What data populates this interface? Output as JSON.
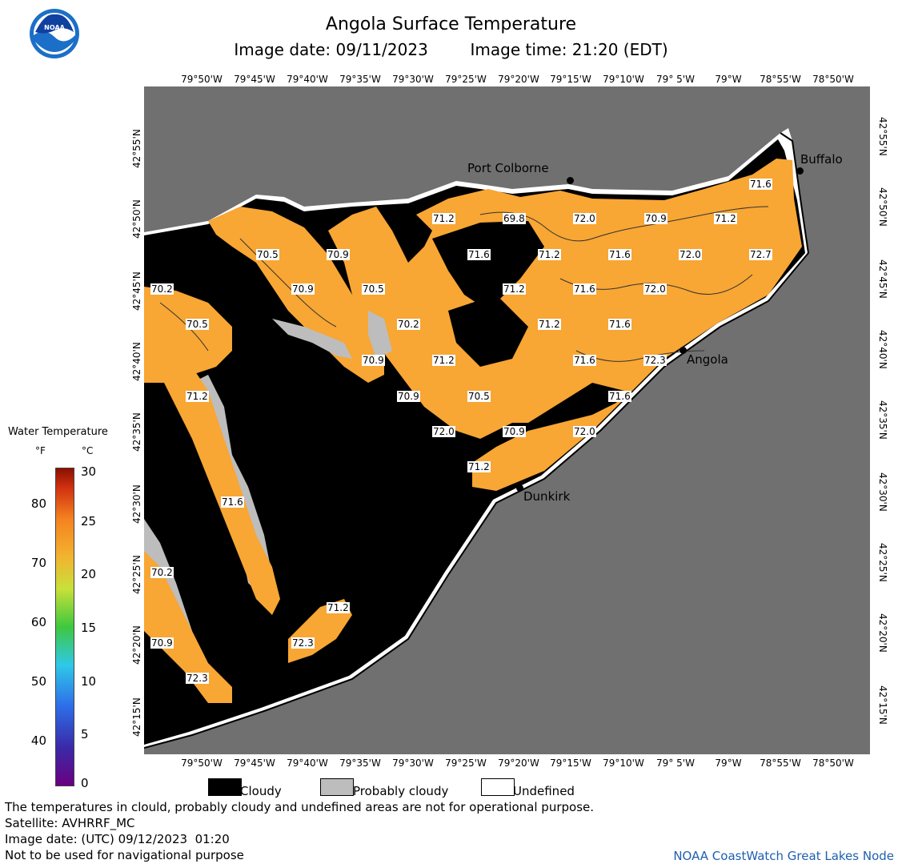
{
  "header": {
    "title": "Angola Surface Temperature",
    "image_date_label": "Image date: 09/11/2023",
    "image_time_label": "Image time: 21:20 (EDT)"
  },
  "logo": {
    "text": "NOAA"
  },
  "axes": {
    "longitudes": [
      "79°50'W",
      "79°45'W",
      "79°40'W",
      "79°35'W",
      "79°30'W",
      "79°25'W",
      "79°20'W",
      "79°15'W",
      "79°10'W",
      "79° 5'W",
      "79°W",
      "78°55'W",
      "78°50'W"
    ],
    "latitudes": [
      "42°55'N",
      "42°50'N",
      "42°45'N",
      "42°40'N",
      "42°35'N",
      "42°30'N",
      "42°25'N",
      "42°20'N",
      "42°15'N"
    ]
  },
  "cities": {
    "port_colborne": "Port Colborne",
    "buffalo": "Buffalo",
    "angola": "Angola",
    "dunkirk": "Dunkirk"
  },
  "temperature_labels": [
    "71.2",
    "69.8",
    "72.0",
    "70.9",
    "71.2",
    "71.6",
    "70.5",
    "70.9",
    "71.6",
    "71.2",
    "71.6",
    "72.0",
    "72.7",
    "70.2",
    "70.9",
    "71.2",
    "71.6",
    "72.0",
    "70.5",
    "70.2",
    "71.2",
    "71.6",
    "70.5",
    "70.9",
    "71.2",
    "71.6",
    "72.3",
    "71.2",
    "70.9",
    "70.5",
    "71.6",
    "72.0",
    "70.9",
    "72.0",
    "71.2",
    "71.6",
    "70.2",
    "71.2",
    "70.9",
    "72.3",
    "72.3"
  ],
  "legend": {
    "title": "Water Temperature",
    "unit_f": "°F",
    "unit_c": "°C",
    "f_ticks": [
      "80",
      "70",
      "60",
      "50",
      "40"
    ],
    "c_ticks": [
      "30",
      "25",
      "20",
      "15",
      "10",
      "5",
      "0"
    ]
  },
  "key": {
    "cloudy": "Cloudy",
    "probably_cloudy": "Probably cloudy",
    "undefined": "Undefined"
  },
  "footer": {
    "disclaimer": "The temperatures in clould, probably cloudy and undefined areas are not for operational purpose.",
    "satellite": "Satellite: AVHRRF_MC",
    "utc_date": "Image date: (UTC) 09/12/2023  01:20",
    "nav_warning": "Not to be used for navigational purpose",
    "node": "NOAA CoastWatch Great Lakes Node"
  },
  "colors": {
    "land": "#707070",
    "cloudy": "#000000",
    "probably_cloudy": "#bdbdbd",
    "undefined": "#ffffff",
    "water_warm": "#f8a634",
    "node_text": "#1f5fb0"
  }
}
